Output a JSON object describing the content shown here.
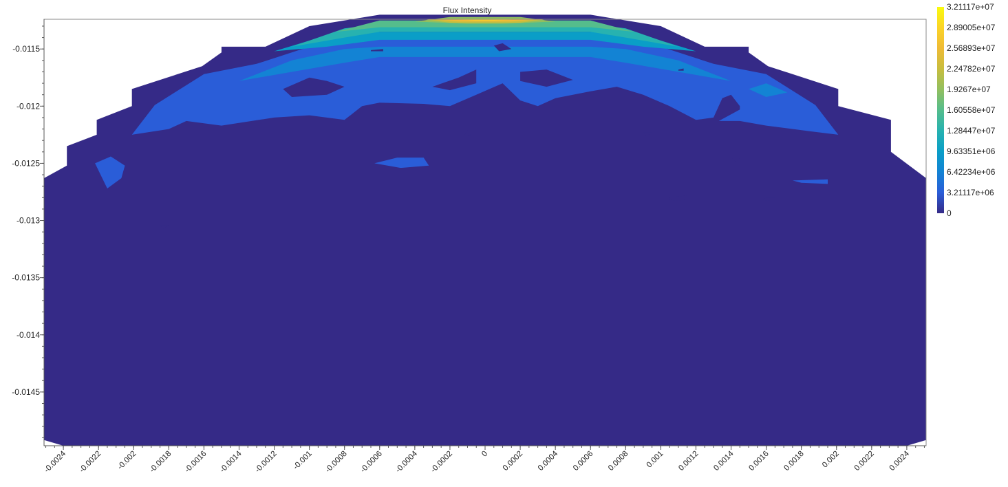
{
  "chart_data": {
    "type": "heatmap",
    "subtype": "filled-contour",
    "title": "Flux Intensity",
    "xlabel": "",
    "ylabel": "",
    "xlim": [
      -0.00251,
      0.00251
    ],
    "ylim": [
      -0.01497,
      -0.01124
    ],
    "x_ticks": [
      -0.0024,
      -0.0022,
      -0.002,
      -0.0018,
      -0.0016,
      -0.0014,
      -0.0012,
      -0.001,
      -0.0008,
      -0.0006,
      -0.0004,
      -0.0002,
      0,
      0.0002,
      0.0004,
      0.0006,
      0.0008,
      0.001,
      0.0012,
      0.0014,
      0.0016,
      0.0018,
      0.002,
      0.0022,
      0.0024
    ],
    "x_tick_labels": [
      "-0.0024",
      "-0.0022",
      "-0.002",
      "-0.0018",
      "-0.0016",
      "-0.0014",
      "-0.0012",
      "-0.001",
      "-0.0008",
      "-0.0006",
      "-0.0004",
      "-0.0002",
      "0",
      "0.0002",
      "0.0004",
      "0.0006",
      "0.0008",
      "0.001",
      "0.0012",
      "0.0014",
      "0.0016",
      "0.0018",
      "0.002",
      "0.0022",
      "0.0024"
    ],
    "y_ticks": [
      -0.0115,
      -0.012,
      -0.0125,
      -0.013,
      -0.0135,
      -0.014,
      -0.0145
    ],
    "y_tick_labels": [
      "-0.0115",
      "-0.012",
      "-0.0125",
      "-0.013",
      "-0.0135",
      "-0.014",
      "-0.0145"
    ],
    "colorbar": {
      "min": 0,
      "max": 32111700,
      "tick_labels": [
        "3.21117e+07",
        "2.89005e+07",
        "2.56893e+07",
        "2.24782e+07",
        "1.9267e+07",
        "1.60558e+07",
        "1.28447e+07",
        "9.63351e+06",
        "6.42234e+06",
        "3.21117e+06",
        "0"
      ],
      "colormap": "parula",
      "colors": [
        "#352a87",
        "#2a5dd8",
        "#1383d4",
        "#0a9ec7",
        "#27b2b0",
        "#55bd8c",
        "#92bf5f",
        "#c8bd3e",
        "#efbb36",
        "#fbd427",
        "#f9fb0e"
      ]
    },
    "region_bounds": [
      [
        -0.00251,
        -0.01492
      ],
      [
        -0.00251,
        -0.01263
      ],
      [
        -0.00238,
        -0.01252
      ],
      [
        -0.00238,
        -0.01235
      ],
      [
        -0.00221,
        -0.01225
      ],
      [
        -0.00221,
        -0.01212
      ],
      [
        -0.00201,
        -0.012
      ],
      [
        -0.00201,
        -0.01185
      ],
      [
        -0.00161,
        -0.01165
      ],
      [
        -0.0015,
        -0.01153
      ],
      [
        -0.0015,
        -0.01148
      ],
      [
        -0.00125,
        -0.01148
      ],
      [
        -0.001,
        -0.0113
      ],
      [
        -0.0006,
        -0.0112
      ],
      [
        0.0006,
        -0.0112
      ],
      [
        0.001,
        -0.0113
      ],
      [
        0.00125,
        -0.01148
      ],
      [
        0.0015,
        -0.01148
      ],
      [
        0.0015,
        -0.01153
      ],
      [
        0.00161,
        -0.01165
      ],
      [
        0.00201,
        -0.01185
      ],
      [
        0.00201,
        -0.012
      ],
      [
        0.00231,
        -0.01212
      ],
      [
        0.00231,
        -0.0124
      ],
      [
        0.00251,
        -0.01263
      ],
      [
        0.00251,
        -0.01492
      ],
      [
        0.0024,
        -0.01497
      ],
      [
        -0.0024,
        -0.01497
      ]
    ],
    "contour_regions": [
      {
        "level": 1,
        "points": [
          [
            -0.00201,
            -0.01225
          ],
          [
            -0.00188,
            -0.01199
          ],
          [
            -0.0016,
            -0.01172
          ],
          [
            -0.0013,
            -0.01163
          ],
          [
            -0.001,
            -0.01148
          ],
          [
            -0.0006,
            -0.0114
          ],
          [
            0.0006,
            -0.0114
          ],
          [
            0.001,
            -0.01148
          ],
          [
            0.0013,
            -0.01163
          ],
          [
            0.0016,
            -0.01172
          ],
          [
            0.00188,
            -0.01199
          ],
          [
            0.00201,
            -0.01225
          ],
          [
            0.00185,
            -0.01222
          ],
          [
            0.0016,
            -0.01217
          ],
          [
            0.00145,
            -0.01213
          ],
          [
            0.00133,
            -0.01213
          ],
          [
            0.00145,
            -0.01203
          ],
          [
            0.00145,
            -0.012
          ],
          [
            0.0014,
            -0.0119
          ],
          [
            0.00135,
            -0.01193
          ],
          [
            0.0013,
            -0.0121
          ],
          [
            0.0012,
            -0.01212
          ],
          [
            0.00105,
            -0.012
          ],
          [
            0.0009,
            -0.0119
          ],
          [
            0.00075,
            -0.01183
          ],
          [
            0.0006,
            -0.01187
          ],
          [
            0.0004,
            -0.01193
          ],
          [
            0.0003,
            -0.012
          ],
          [
            0.0002,
            -0.01195
          ],
          [
            0.0001,
            -0.0118
          ],
          [
            -5e-05,
            -0.0119
          ],
          [
            -0.0002,
            -0.012
          ],
          [
            -0.00035,
            -0.01198
          ],
          [
            -0.0006,
            -0.01197
          ],
          [
            -0.0007,
            -0.012
          ],
          [
            -0.0008,
            -0.01212
          ],
          [
            -0.001,
            -0.01208
          ],
          [
            -0.0012,
            -0.0121
          ],
          [
            -0.0015,
            -0.01217
          ],
          [
            -0.0017,
            -0.01213
          ],
          [
            -0.0018,
            -0.0122
          ]
        ]
      },
      {
        "level": 1,
        "points": [
          [
            -0.00222,
            -0.0125
          ],
          [
            -0.00213,
            -0.01244
          ],
          [
            -0.00205,
            -0.01252
          ],
          [
            -0.00207,
            -0.01263
          ],
          [
            -0.00215,
            -0.01272
          ]
        ]
      },
      {
        "level": 1,
        "points": [
          [
            -0.0005,
            -0.01245
          ],
          [
            -0.00035,
            -0.01245
          ],
          [
            -0.00032,
            -0.01252
          ],
          [
            -0.00048,
            -0.01254
          ],
          [
            -0.00063,
            -0.0125
          ]
        ]
      },
      {
        "level": 1,
        "points": [
          [
            0.00175,
            -0.01265
          ],
          [
            0.00195,
            -0.01264
          ],
          [
            0.00195,
            -0.01268
          ],
          [
            0.0018,
            -0.01267
          ]
        ]
      },
      {
        "level": 2,
        "points": [
          [
            -0.0014,
            -0.01178
          ],
          [
            -0.0011,
            -0.0116
          ],
          [
            -0.0008,
            -0.0115
          ],
          [
            -0.0006,
            -0.01148
          ],
          [
            0.0006,
            -0.01148
          ],
          [
            0.0008,
            -0.0115
          ],
          [
            0.0011,
            -0.0116
          ],
          [
            0.0014,
            -0.01178
          ],
          [
            0.0011,
            -0.0117
          ],
          [
            0.0008,
            -0.01162
          ],
          [
            0.0006,
            -0.01157
          ],
          [
            -0.0006,
            -0.01157
          ],
          [
            -0.0008,
            -0.01162
          ],
          [
            -0.0011,
            -0.0117
          ]
        ]
      },
      {
        "level": 2,
        "points": [
          [
            0.0016,
            -0.0118
          ],
          [
            0.00172,
            -0.01188
          ],
          [
            0.0016,
            -0.01192
          ],
          [
            0.0015,
            -0.01185
          ]
        ]
      },
      {
        "level": 3,
        "points": [
          [
            -0.0012,
            -0.01152
          ],
          [
            -0.0009,
            -0.01138
          ],
          [
            -0.0007,
            -0.01135
          ],
          [
            0.0007,
            -0.01135
          ],
          [
            0.0009,
            -0.01138
          ],
          [
            0.0012,
            -0.01152
          ],
          [
            0.0009,
            -0.01148
          ],
          [
            0.0006,
            -0.01142
          ],
          [
            -0.0006,
            -0.01142
          ],
          [
            -0.0009,
            -0.01148
          ]
        ]
      },
      {
        "level": 4,
        "points": [
          [
            -0.0011,
            -0.01148
          ],
          [
            -0.0008,
            -0.01132
          ],
          [
            -0.0006,
            -0.01128
          ],
          [
            0.0006,
            -0.01128
          ],
          [
            0.0008,
            -0.01132
          ],
          [
            0.0011,
            -0.01148
          ],
          [
            0.0008,
            -0.0114
          ],
          [
            0.0006,
            -0.01135
          ],
          [
            -0.0006,
            -0.01135
          ],
          [
            -0.0008,
            -0.0114
          ]
        ]
      },
      {
        "level": 5,
        "points": [
          [
            -0.00085,
            -0.01135
          ],
          [
            -0.0006,
            -0.01125
          ],
          [
            0.0006,
            -0.01125
          ],
          [
            0.00085,
            -0.01135
          ],
          [
            0.0006,
            -0.01131
          ],
          [
            -0.0006,
            -0.01131
          ]
        ]
      },
      {
        "level": 6,
        "points": [
          [
            -0.0004,
            -0.01126
          ],
          [
            -0.0002,
            -0.01122
          ],
          [
            0.0002,
            -0.01122
          ],
          [
            0.0004,
            -0.01126
          ],
          [
            0.0001,
            -0.01128
          ],
          [
            -0.0001,
            -0.01128
          ]
        ]
      },
      {
        "level": 7,
        "points": [
          [
            -0.00035,
            -0.01124
          ],
          [
            0.00035,
            -0.01124
          ],
          [
            0.0002,
            -0.01127
          ],
          [
            -0.0002,
            -0.01127
          ]
        ]
      },
      {
        "level": 8,
        "points": [
          [
            -0.0003,
            -0.01124
          ],
          [
            0.0003,
            -0.01124
          ],
          [
            0.00015,
            -0.01126
          ],
          [
            -0.00015,
            -0.01126
          ]
        ]
      },
      {
        "level": 9,
        "points": [
          [
            -0.0002,
            -0.01124
          ],
          [
            0.0002,
            -0.01124
          ],
          [
            5e-05,
            -0.01125
          ],
          [
            -5e-05,
            -0.01125
          ]
        ]
      }
    ],
    "low_value_patches": [
      {
        "points": [
          [
            -0.00115,
            -0.01185
          ],
          [
            -0.001,
            -0.01175
          ],
          [
            -0.0009,
            -0.01178
          ],
          [
            -0.0008,
            -0.01183
          ],
          [
            -0.0009,
            -0.0119
          ],
          [
            -0.0011,
            -0.01192
          ]
        ]
      },
      {
        "points": [
          [
            -0.0003,
            -0.01183
          ],
          [
            -0.00015,
            -0.01175
          ],
          [
            -5e-05,
            -0.01168
          ],
          [
            -5e-05,
            -0.0118
          ],
          [
            -0.0002,
            -0.01186
          ]
        ]
      },
      {
        "points": [
          [
            0.0002,
            -0.0117
          ],
          [
            0.00035,
            -0.01168
          ],
          [
            0.0005,
            -0.01177
          ],
          [
            0.00035,
            -0.01183
          ],
          [
            0.0002,
            -0.01178
          ]
        ]
      },
      {
        "points": [
          [
            5e-05,
            -0.01147
          ],
          [
            0.0001,
            -0.01145
          ],
          [
            0.00015,
            -0.0115
          ],
          [
            8e-05,
            -0.01152
          ]
        ]
      },
      {
        "points": [
          [
            -0.00065,
            -0.01151
          ],
          [
            -0.00058,
            -0.0115
          ],
          [
            -0.00058,
            -0.01152
          ],
          [
            -0.00065,
            -0.01152
          ]
        ]
      },
      {
        "points": [
          [
            0.0011,
            -0.01168
          ],
          [
            0.00113,
            -0.01167
          ],
          [
            0.00113,
            -0.01169
          ],
          [
            0.0011,
            -0.01169
          ]
        ]
      },
      {
        "points": [
          [
            -0.0001,
            -0.01221
          ],
          [
            -8e-05,
            -0.01225
          ],
          [
            -0.00012,
            -0.01226
          ]
        ]
      },
      {
        "points": [
          [
            0.0009,
            -0.01223
          ],
          [
            0.00095,
            -0.01223
          ],
          [
            0.00092,
            -0.01226
          ]
        ]
      },
      {
        "points": [
          [
            0.0014,
            -0.01245
          ],
          [
            0.00145,
            -0.01245
          ],
          [
            0.00143,
            -0.01249
          ]
        ]
      },
      {
        "points": [
          [
            0.00105,
            -0.0128
          ],
          [
            0.00115,
            -0.01278
          ],
          [
            0.00113,
            -0.01283
          ],
          [
            0.00105,
            -0.01282
          ]
        ]
      },
      {
        "points": [
          [
            0.0016,
            -0.0128
          ],
          [
            0.00165,
            -0.0128
          ],
          [
            0.00163,
            -0.01283
          ],
          [
            0.00158,
            -0.01282
          ]
        ]
      },
      {
        "points": [
          [
            -0.00185,
            -0.01304
          ],
          [
            -0.0018,
            -0.01304
          ],
          [
            -0.00183,
            -0.01307
          ]
        ]
      }
    ]
  }
}
